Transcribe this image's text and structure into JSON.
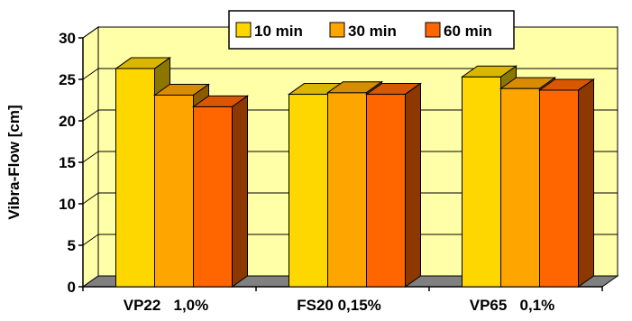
{
  "chart_data": {
    "type": "bar",
    "title": "",
    "xlabel": "",
    "ylabel": "Vibra-Flow [cm]",
    "ylim": [
      0,
      30
    ],
    "yticks": [
      0,
      5,
      10,
      15,
      20,
      25,
      30
    ],
    "grid": true,
    "legend_position": "top-right",
    "categories": [
      "VP22   1,0%",
      "FS20 0,15%",
      "VP65   0,1%"
    ],
    "series": [
      {
        "name": "10 min",
        "color": "#FFD700",
        "values": [
          26.3,
          23.2,
          25.3
        ]
      },
      {
        "name": "30 min",
        "color": "#FFA500",
        "values": [
          23.1,
          23.4,
          23.9
        ]
      },
      {
        "name": "60 min",
        "color": "#FF6600",
        "values": [
          21.7,
          23.2,
          23.7
        ]
      }
    ],
    "colors": {
      "plot_wall": "#FFFFA8",
      "floor": "#808080",
      "gridline": "#000000"
    }
  }
}
